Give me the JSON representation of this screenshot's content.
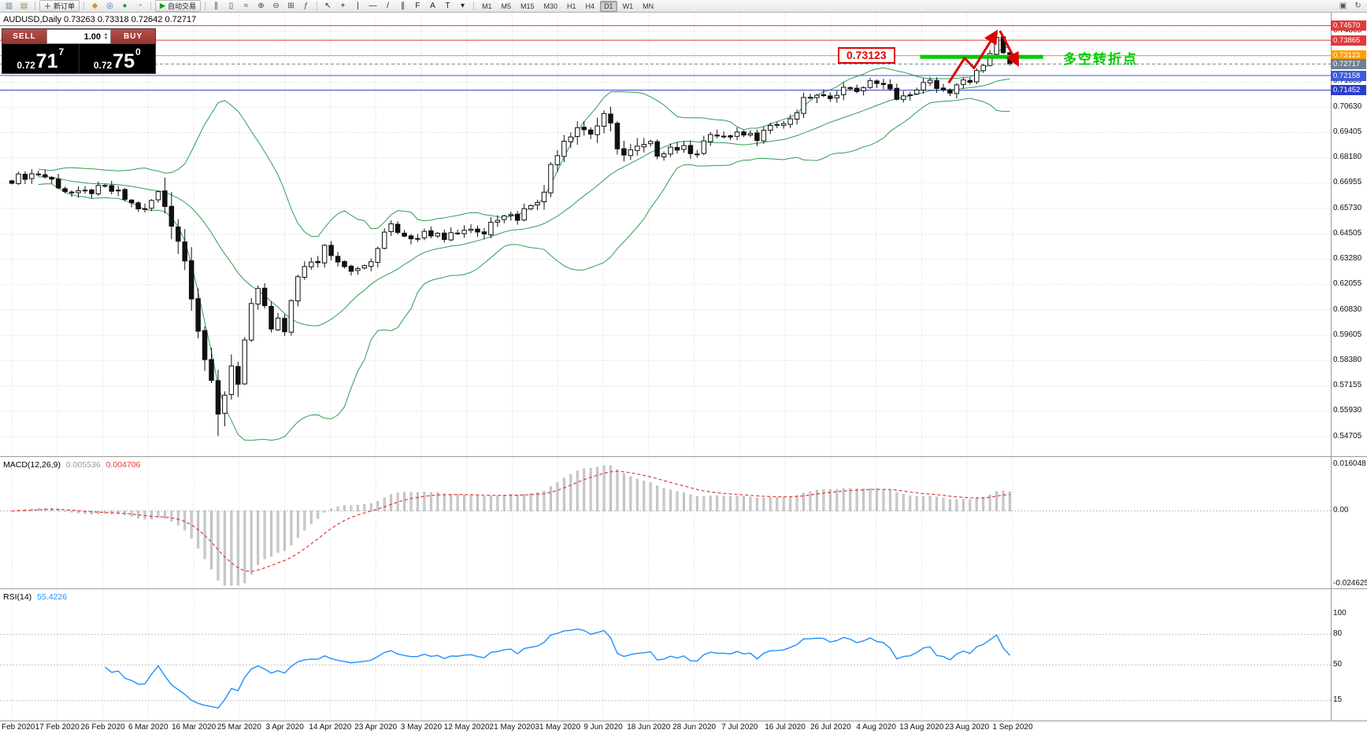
{
  "toolbar": {
    "left_icons": [
      {
        "name": "new-chart-icon",
        "glyph": "▥",
        "color": "#5a7d9a"
      },
      {
        "name": "profiles-icon",
        "glyph": "▤",
        "color": "#8a8a5a"
      }
    ],
    "new_order": {
      "label": "新订单",
      "icon_glyph": "＋",
      "icon_color": "#18a018"
    },
    "mid_icons": [
      {
        "name": "metaeditor-icon",
        "glyph": "◆",
        "color": "#c9a227"
      },
      {
        "name": "market-watch-icon",
        "glyph": "◎",
        "color": "#2a7ab8"
      },
      {
        "name": "navigator-icon",
        "glyph": "●",
        "color": "#2a9a4a"
      },
      {
        "name": "terminal-icon",
        "glyph": "◔",
        "color": "#888888"
      }
    ],
    "autotrading": {
      "label": "自动交易",
      "icon_gl yph_note": "play triangle",
      "icon_glyph": "▶",
      "icon_color": "#18a018"
    },
    "chart_icons": [
      {
        "name": "bar-chart-icon",
        "glyph": "∥",
        "color": "#444444"
      },
      {
        "name": "candlestick-chart-icon",
        "glyph": "▯",
        "color": "#444444"
      },
      {
        "name": "line-chart-icon",
        "glyph": "≈",
        "color": "#444444"
      },
      {
        "name": "zoom-in-icon",
        "glyph": "⊕",
        "color": "#444444"
      },
      {
        "name": "zoom-out-icon",
        "glyph": "⊖",
        "color": "#444444"
      },
      {
        "name": "tile-windows-icon",
        "glyph": "⊞",
        "color": "#444444"
      },
      {
        "name": "indicators-icon",
        "glyph": "ƒ",
        "color": "#18731a"
      }
    ],
    "tool_icons": [
      {
        "name": "cursor-icon",
        "glyph": "↖",
        "color": "#222222"
      },
      {
        "name": "crosshair-icon",
        "glyph": "+",
        "color": "#222222"
      },
      {
        "name": "vertical-line-icon",
        "glyph": "|",
        "color": "#222222"
      },
      {
        "name": "horizontal-line-icon",
        "glyph": "―",
        "color": "#222222"
      },
      {
        "name": "trendline-icon",
        "glyph": "/",
        "color": "#222222"
      },
      {
        "name": "equidistant-channel-icon",
        "glyph": "∥",
        "color": "#222222"
      },
      {
        "name": "fibonacci-icon",
        "glyph": "F",
        "color": "#222222"
      },
      {
        "name": "text-icon",
        "glyph": "A",
        "color": "#222222"
      },
      {
        "name": "text-label-icon",
        "glyph": "T",
        "color": "#222222"
      },
      {
        "name": "shapes-dropdown-icon",
        "glyph": "▾",
        "color": "#222222"
      }
    ],
    "timeframes": [
      "M1",
      "M5",
      "M15",
      "M30",
      "H1",
      "H4",
      "D1",
      "W1",
      "MN"
    ],
    "active_timeframe": "D1",
    "right_icons": [
      {
        "name": "windows-icon",
        "glyph": "▣",
        "color": "#555555"
      },
      {
        "name": "refresh-icon",
        "glyph": "↻",
        "color": "#555555"
      }
    ]
  },
  "chart": {
    "header": "AUDUSD,Daily  0.73263 0.73318 0.72642 0.72717",
    "trade_panel": {
      "sell_label": "SELL",
      "buy_label": "BUY",
      "volume": "1.00",
      "sell_price_prefix": "0.72",
      "sell_price_big": "71",
      "sell_price_sup": "7",
      "buy_price_prefix": "0.72",
      "buy_price_big": "75",
      "buy_price_sup": "0"
    }
  },
  "price_axis": {
    "grid_labels": [
      "0.74305",
      "0.73080",
      "0.71855",
      "0.70630",
      "0.69405",
      "0.68180",
      "0.66955",
      "0.65730",
      "0.64505",
      "0.63280",
      "0.62055",
      "0.60830",
      "0.59605",
      "0.58380",
      "0.57155",
      "0.55930",
      "0.54705"
    ],
    "tags": [
      {
        "text": "0.74570",
        "color": "#e03a3a"
      },
      {
        "text": "0.73865",
        "color": "#e03a3a"
      },
      {
        "text": "0.73123",
        "color": "#ff9d00"
      },
      {
        "text": "0.72717",
        "color": "#708090"
      },
      {
        "text": "0.72158",
        "color": "#3b5bd6"
      },
      {
        "text": "0.71452",
        "color": "#2c3ec9"
      }
    ]
  },
  "date_axis": [
    "Feb 2020",
    "17 Feb 2020",
    "26 Feb 2020",
    "6 Mar 2020",
    "16 Mar 2020",
    "25 Mar 2020",
    "3 Apr 2020",
    "14 Apr 2020",
    "23 Apr 2020",
    "3 May 2020",
    "12 May 2020",
    "21 May 2020",
    "31 May 2020",
    "9 Jun 2020",
    "18 Jun 2020",
    "28 Jun 2020",
    "7 Jul 2020",
    "16 Jul 2020",
    "26 Jul 2020",
    "4 Aug 2020",
    "13 Aug 2020",
    "23 Aug 2020",
    "1 Sep 2020"
  ],
  "indicators": {
    "macd": {
      "name": "MACD(12,26,9)",
      "value_main": "0.005536",
      "value_signal": "0.004706",
      "scale_top": "0.016048",
      "scale_zero": "0.00",
      "scale_bottom": "-0.024625"
    },
    "rsi": {
      "name": "RSI(14)",
      "value": "55.4226",
      "scale_labels": [
        "100",
        "80",
        "50",
        "15"
      ]
    }
  },
  "annotations": {
    "price_label": "0.73123",
    "turning_point_text": "多空转折点",
    "colors": {
      "bullbear_green": "#00cc00",
      "arrow_red": "#e00000"
    },
    "hlines": [
      {
        "price": 0.7457,
        "color": "#e03a3a"
      },
      {
        "price": 0.73865,
        "color": "#e03a3a"
      },
      {
        "price": 0.73123,
        "color": "#ff9d00"
      },
      {
        "price": 0.72158,
        "color": "#3b5bd6"
      },
      {
        "price": 0.71452,
        "color": "#2c3ec9"
      }
    ],
    "current_price_line": {
      "price": 0.72717,
      "color": "#708090"
    },
    "green_segment": {
      "price": 0.7306,
      "from_index": 136.5,
      "to_index": 155,
      "width": 5
    },
    "arrows": [
      {
        "points_index_price": [
          [
            140.8,
            0.718
          ],
          [
            143.2,
            0.73
          ],
          [
            144.6,
            0.7252
          ],
          [
            148.0,
            0.7428
          ]
        ]
      },
      {
        "points_index_price": [
          [
            148.5,
            0.7432
          ],
          [
            151.2,
            0.7268
          ]
        ]
      }
    ]
  },
  "chart_data": {
    "type": "candlestick",
    "symbol": "AUDUSD",
    "timeframe": "Daily",
    "last_ohlc": {
      "open": 0.73263,
      "high": 0.73318,
      "low": 0.72642,
      "close": 0.72717
    },
    "candle_count": 151,
    "price_range_top": 0.752,
    "price_range_bottom": 0.5376,
    "price_grid_step": 0.01225,
    "close_anchors": [
      [
        0,
        0.6715
      ],
      [
        2,
        0.6732
      ],
      [
        4,
        0.6745
      ],
      [
        6,
        0.671
      ],
      [
        8,
        0.6662
      ],
      [
        10,
        0.664
      ],
      [
        12,
        0.6658
      ],
      [
        14,
        0.6672
      ],
      [
        16,
        0.6645
      ],
      [
        18,
        0.6595
      ],
      [
        20,
        0.6562
      ],
      [
        21,
        0.661
      ],
      [
        22,
        0.6648
      ],
      [
        23,
        0.659
      ],
      [
        24,
        0.652
      ],
      [
        25,
        0.643
      ],
      [
        26,
        0.632
      ],
      [
        27,
        0.618
      ],
      [
        28,
        0.601
      ],
      [
        29,
        0.585
      ],
      [
        30,
        0.57
      ],
      [
        31,
        0.556
      ],
      [
        32,
        0.569
      ],
      [
        33,
        0.582
      ],
      [
        34,
        0.575
      ],
      [
        35,
        0.5935
      ],
      [
        36,
        0.6095
      ],
      [
        37,
        0.617
      ],
      [
        38,
        0.6105
      ],
      [
        39,
        0.598
      ],
      [
        40,
        0.604
      ],
      [
        41,
        0.596
      ],
      [
        42,
        0.613
      ],
      [
        43,
        0.6255
      ],
      [
        44,
        0.6285
      ],
      [
        46,
        0.632
      ],
      [
        47,
        0.6395
      ],
      [
        48,
        0.636
      ],
      [
        50,
        0.63
      ],
      [
        52,
        0.627
      ],
      [
        54,
        0.632
      ],
      [
        55,
        0.6365
      ],
      [
        56,
        0.646
      ],
      [
        57,
        0.651
      ],
      [
        58,
        0.6465
      ],
      [
        60,
        0.644
      ],
      [
        62,
        0.645
      ],
      [
        64,
        0.647
      ],
      [
        65,
        0.644
      ],
      [
        67,
        0.6465
      ],
      [
        69,
        0.648
      ],
      [
        71,
        0.645
      ],
      [
        72,
        0.652
      ],
      [
        74,
        0.655
      ],
      [
        76,
        0.653
      ],
      [
        78,
        0.66
      ],
      [
        80,
        0.664
      ],
      [
        81,
        0.679
      ],
      [
        83,
        0.691
      ],
      [
        85,
        0.697
      ],
      [
        87,
        0.694
      ],
      [
        89,
        0.701
      ],
      [
        90,
        0.697
      ],
      [
        91,
        0.688
      ],
      [
        92,
        0.683
      ],
      [
        94,
        0.686
      ],
      [
        96,
        0.688
      ],
      [
        97,
        0.684
      ],
      [
        99,
        0.687
      ],
      [
        101,
        0.686
      ],
      [
        103,
        0.685
      ],
      [
        104,
        0.69
      ],
      [
        106,
        0.693
      ],
      [
        108,
        0.691
      ],
      [
        110,
        0.694
      ],
      [
        112,
        0.692
      ],
      [
        113,
        0.697
      ],
      [
        115,
        0.698
      ],
      [
        117,
        0.699
      ],
      [
        119,
        0.709
      ],
      [
        120,
        0.712
      ],
      [
        122,
        0.71
      ],
      [
        124,
        0.714
      ],
      [
        126,
        0.716
      ],
      [
        128,
        0.714
      ],
      [
        129,
        0.72
      ],
      [
        131,
        0.716
      ],
      [
        133,
        0.712
      ],
      [
        135,
        0.711
      ],
      [
        136,
        0.716
      ],
      [
        138,
        0.718
      ],
      [
        140,
        0.715
      ],
      [
        141,
        0.712
      ],
      [
        142,
        0.716
      ],
      [
        144,
        0.72
      ],
      [
        145,
        0.724
      ],
      [
        146,
        0.7265
      ],
      [
        147,
        0.7322
      ],
      [
        148,
        0.74
      ],
      [
        149,
        0.7326
      ],
      [
        150,
        0.72717
      ]
    ],
    "low_overrides": [
      [
        31,
        0.5473
      ],
      [
        150,
        0.72642
      ]
    ],
    "high_overrides": [
      [
        148,
        0.7413
      ],
      [
        150,
        0.73318
      ]
    ],
    "bollinger": {
      "period": 20,
      "deviation": 2,
      "color": "#2e9e55"
    },
    "macd_params": {
      "fast": 12,
      "slow": 26,
      "signal": 9,
      "last_main": 0.005536,
      "last_signal": 0.004706
    },
    "macd_range": {
      "max": 0.016048,
      "min": -0.024625
    },
    "rsi_params": {
      "period": 14,
      "last": 55.4226
    },
    "rsi_levels": [
      80,
      50,
      15
    ]
  }
}
